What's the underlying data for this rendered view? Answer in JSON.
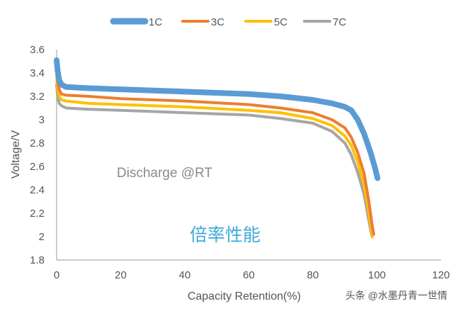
{
  "chart_data": {
    "type": "line",
    "title": "",
    "xlabel": "Capacity Retention(%)",
    "ylabel": "Voltage/V",
    "xlim": [
      0,
      120
    ],
    "ylim": [
      1.8,
      3.6
    ],
    "x_ticks": [
      "0",
      "20",
      "40",
      "60",
      "80",
      "100",
      "120"
    ],
    "y_ticks": [
      "1.8",
      "2",
      "2.2",
      "2.4",
      "2.6",
      "2.8",
      "3",
      "3.2",
      "3.4",
      "3.6"
    ],
    "y_tick_values": [
      1.8,
      2,
      2.2,
      2.4,
      2.6,
      2.8,
      3,
      3.2,
      3.4,
      3.6
    ],
    "grid": false,
    "legend_position": "top",
    "series": [
      {
        "name": "1C",
        "color": "#5b9bd5",
        "points": [
          [
            0,
            3.51
          ],
          [
            0.3,
            3.42
          ],
          [
            0.8,
            3.34
          ],
          [
            1.5,
            3.3
          ],
          [
            3,
            3.28
          ],
          [
            10,
            3.27
          ],
          [
            20,
            3.26
          ],
          [
            40,
            3.24
          ],
          [
            60,
            3.22
          ],
          [
            70,
            3.2
          ],
          [
            80,
            3.17
          ],
          [
            86,
            3.14
          ],
          [
            90,
            3.11
          ],
          [
            92,
            3.08
          ],
          [
            94,
            3.0
          ],
          [
            96,
            2.88
          ],
          [
            98,
            2.72
          ],
          [
            99.5,
            2.58
          ],
          [
            100.2,
            2.5
          ]
        ]
      },
      {
        "name": "3C",
        "color": "#ed7d31",
        "points": [
          [
            0,
            3.44
          ],
          [
            0.3,
            3.33
          ],
          [
            0.8,
            3.26
          ],
          [
            1.5,
            3.22
          ],
          [
            3,
            3.21
          ],
          [
            10,
            3.2
          ],
          [
            20,
            3.18
          ],
          [
            40,
            3.16
          ],
          [
            60,
            3.13
          ],
          [
            70,
            3.1
          ],
          [
            80,
            3.06
          ],
          [
            86,
            3.0
          ],
          [
            90,
            2.93
          ],
          [
            92,
            2.85
          ],
          [
            94,
            2.72
          ],
          [
            96,
            2.54
          ],
          [
            97.5,
            2.3
          ],
          [
            98.5,
            2.1
          ],
          [
            99,
            2.02
          ]
        ]
      },
      {
        "name": "5C",
        "color": "#ffc000",
        "points": [
          [
            0,
            3.38
          ],
          [
            0.3,
            3.27
          ],
          [
            0.8,
            3.2
          ],
          [
            1.5,
            3.17
          ],
          [
            3,
            3.16
          ],
          [
            10,
            3.14
          ],
          [
            20,
            3.13
          ],
          [
            40,
            3.11
          ],
          [
            60,
            3.08
          ],
          [
            70,
            3.06
          ],
          [
            80,
            3.01
          ],
          [
            86,
            2.95
          ],
          [
            90,
            2.86
          ],
          [
            92,
            2.78
          ],
          [
            94,
            2.64
          ],
          [
            96,
            2.44
          ],
          [
            97.2,
            2.25
          ],
          [
            98,
            2.1
          ],
          [
            98.6,
            2.0
          ]
        ]
      },
      {
        "name": "7C",
        "color": "#a5a5a5",
        "points": [
          [
            0,
            3.3
          ],
          [
            0.3,
            3.2
          ],
          [
            0.8,
            3.14
          ],
          [
            1.5,
            3.12
          ],
          [
            3,
            3.1
          ],
          [
            10,
            3.09
          ],
          [
            20,
            3.08
          ],
          [
            40,
            3.06
          ],
          [
            60,
            3.04
          ],
          [
            70,
            3.01
          ],
          [
            80,
            2.97
          ],
          [
            86,
            2.9
          ],
          [
            90,
            2.8
          ],
          [
            92,
            2.7
          ],
          [
            94,
            2.55
          ],
          [
            96,
            2.36
          ],
          [
            97.2,
            2.18
          ],
          [
            98,
            2.06
          ],
          [
            98.5,
            2.0
          ]
        ]
      }
    ],
    "annotations": [
      "Discharge @RT",
      "倍率性能"
    ]
  },
  "watermark": "头条 @水墨丹青一世情"
}
